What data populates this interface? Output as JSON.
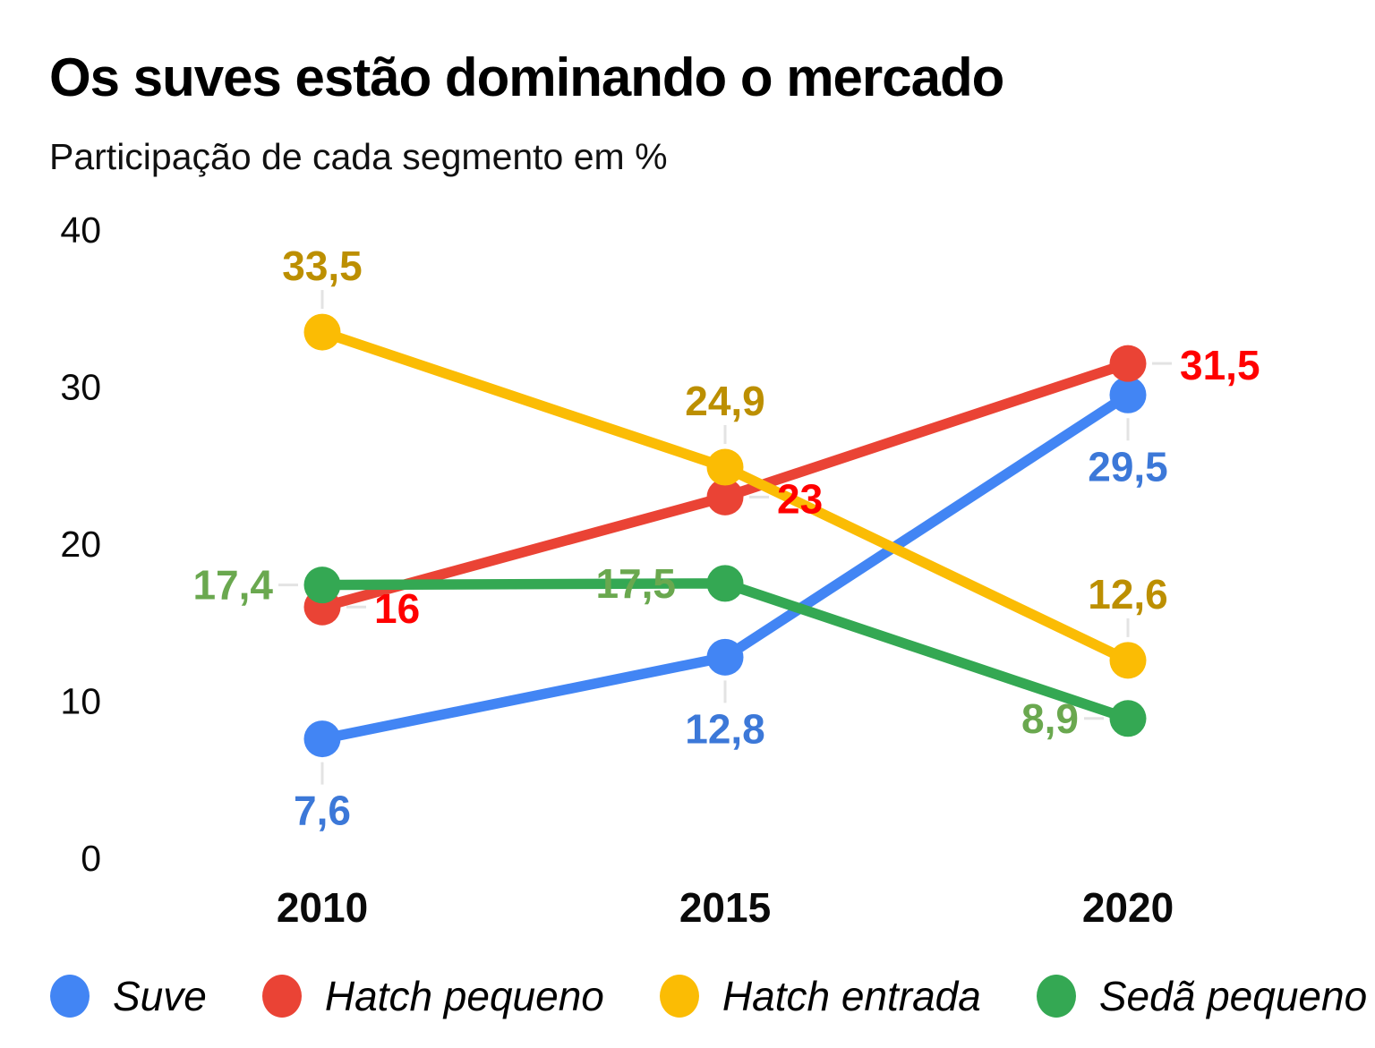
{
  "title": "Os suves estão dominando o mercado",
  "subtitle": "Participação de cada segmento em %",
  "chart_data": {
    "type": "line",
    "categories": [
      "2010",
      "2015",
      "2020"
    ],
    "y_axis": {
      "ticks": [
        0,
        10,
        20,
        30,
        40
      ],
      "range": [
        0,
        40
      ]
    },
    "grid": false,
    "legend_position": "bottom",
    "leader_line_color": "#e3e3e3",
    "series": [
      {
        "name": "Suve",
        "color": "#4285F4",
        "label_color": "#3C78D8",
        "values": [
          7.6,
          12.8,
          29.5
        ],
        "labels": [
          "7,6",
          "12,8",
          "29,5"
        ],
        "label_anchors": [
          "below",
          "below",
          "below"
        ]
      },
      {
        "name": "Hatch pequeno",
        "color": "#EA4335",
        "label_color": "#FF0000",
        "values": [
          16,
          23,
          31.5
        ],
        "labels": [
          "16",
          "23",
          "31,5"
        ],
        "label_anchors": [
          "right",
          "right",
          "right"
        ]
      },
      {
        "name": "Hatch entrada",
        "color": "#FBBC04",
        "label_color": "#BC8F00",
        "values": [
          33.5,
          24.9,
          12.6
        ],
        "labels": [
          "33,5",
          "24,9",
          "12,6"
        ],
        "label_anchors": [
          "above",
          "above",
          "above"
        ]
      },
      {
        "name": "Sedã pequeno",
        "color": "#34A853",
        "label_color": "#6AA84F",
        "values": [
          17.4,
          17.5,
          8.9
        ],
        "labels": [
          "17,4",
          "17,5",
          "8,9"
        ],
        "label_anchors": [
          "left",
          "left",
          "left"
        ]
      }
    ]
  }
}
